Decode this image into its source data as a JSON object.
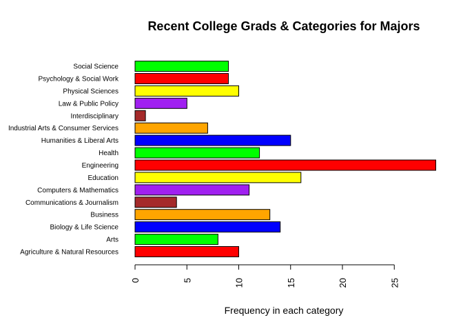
{
  "chart_data": {
    "type": "bar",
    "orientation": "horizontal",
    "title": "Recent College Grads & Categories for Majors",
    "xlabel": "Frequency in each category",
    "ylabel": "",
    "xlim": [
      0,
      29
    ],
    "x_ticks": [
      "0",
      "5",
      "10",
      "15",
      "20",
      "25"
    ],
    "grid": false,
    "legend": "none",
    "categories": [
      "Agriculture & Natural Resources",
      "Arts",
      "Biology & Life Science",
      "Business",
      "Communications & Journalism",
      "Computers & Mathematics",
      "Education",
      "Engineering",
      "Health",
      "Humanities & Liberal Arts",
      "Industrial Arts & Consumer Services",
      "Interdisciplinary",
      "Law & Public Policy",
      "Physical Sciences",
      "Psychology & Social Work",
      "Social Science"
    ],
    "values": [
      10,
      8,
      14,
      13,
      4,
      11,
      16,
      29,
      12,
      15,
      7,
      1,
      5,
      10,
      9,
      9
    ],
    "colors": [
      "#ff0000",
      "#00ff00",
      "#0000ff",
      "#ffa500",
      "#a52a2a",
      "#a020f0",
      "#ffff00",
      "#ff0000",
      "#00ff00",
      "#0000ff",
      "#ffa500",
      "#a52a2a",
      "#a020f0",
      "#ffff00",
      "#ff0000",
      "#00ff00"
    ]
  }
}
